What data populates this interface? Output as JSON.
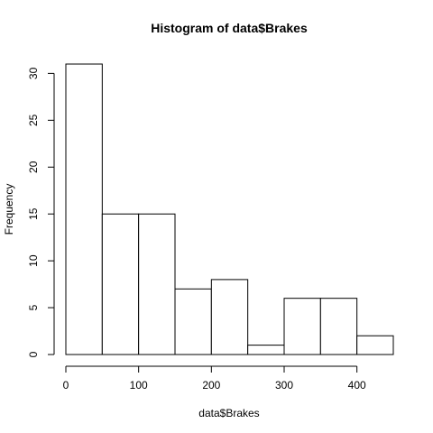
{
  "chart_data": {
    "type": "bar",
    "title": "Histogram of data$Brakes",
    "xlabel": "data$Brakes",
    "ylabel": "Frequency",
    "bins": [
      {
        "start": 0,
        "end": 50,
        "count": 31
      },
      {
        "start": 50,
        "end": 100,
        "count": 15
      },
      {
        "start": 100,
        "end": 150,
        "count": 15
      },
      {
        "start": 150,
        "end": 200,
        "count": 7
      },
      {
        "start": 200,
        "end": 250,
        "count": 8
      },
      {
        "start": 250,
        "end": 300,
        "count": 1
      },
      {
        "start": 300,
        "end": 350,
        "count": 6
      },
      {
        "start": 350,
        "end": 400,
        "count": 6
      },
      {
        "start": 400,
        "end": 450,
        "count": 2
      }
    ],
    "xlim": [
      0,
      450
    ],
    "ylim": [
      0,
      31
    ],
    "x_ticks": [
      0,
      100,
      200,
      300,
      400
    ],
    "y_ticks": [
      0,
      5,
      10,
      15,
      20,
      25,
      30
    ],
    "grid": false,
    "bar_fill": "#ffffff",
    "bar_stroke": "#000000"
  }
}
